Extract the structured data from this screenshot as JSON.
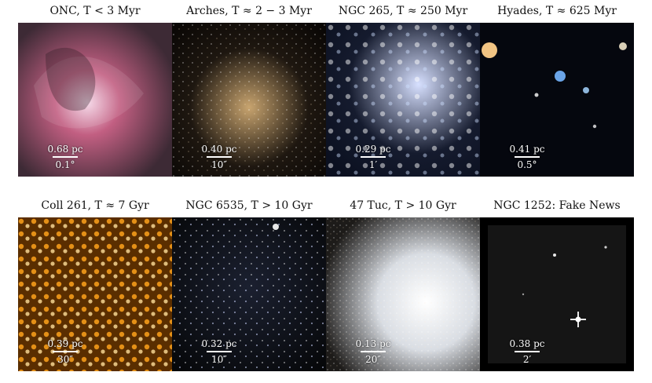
{
  "panels": [
    {
      "title": "ONC, T < 3 Myr",
      "pc": "0.68 pc",
      "ang": "0.1°",
      "palette": [
        "#3d2a35",
        "#c25f82",
        "#f5d6e7"
      ]
    },
    {
      "title": "Arches, T ≈ 2 − 3 Myr",
      "pc": "0.40 pc",
      "ang": "10″",
      "palette": [
        "#0a0705",
        "#c8a46f",
        "#ffffff"
      ]
    },
    {
      "title": "NGC 265, T ≈ 250 Myr",
      "pc": "0.29 pc",
      "ang": "1′",
      "palette": [
        "#151b2e",
        "#d7e0ff",
        "#ffffff"
      ]
    },
    {
      "title": "Hyades, T ≈ 625 Myr",
      "pc": "0.41 pc",
      "ang": "0.5°",
      "palette": [
        "#05070e",
        "#76b6ff",
        "#fff2d5"
      ]
    },
    {
      "title": "Coll 261, T ≈ 7 Gyr",
      "pc": "0.39 pc",
      "ang": "30″",
      "palette": [
        "#5a2e00",
        "#f39a1a",
        "#ffe09b"
      ]
    },
    {
      "title": "NGC 6535, T > 10 Gyr",
      "pc": "0.32 pc",
      "ang": "10″",
      "palette": [
        "#050607",
        "#cfd8ff",
        "#ffffff"
      ]
    },
    {
      "title": "47 Tuc, T > 10 Gyr",
      "pc": "0.13 pc",
      "ang": "20″",
      "palette": [
        "#1d1b19",
        "#d9dde3",
        "#ffffff"
      ]
    },
    {
      "title": "NGC 1252: Fake News",
      "pc": "0.38 pc",
      "ang": "2′",
      "palette": [
        "#151515",
        "#aaaaaa",
        "#ffffff"
      ]
    }
  ]
}
